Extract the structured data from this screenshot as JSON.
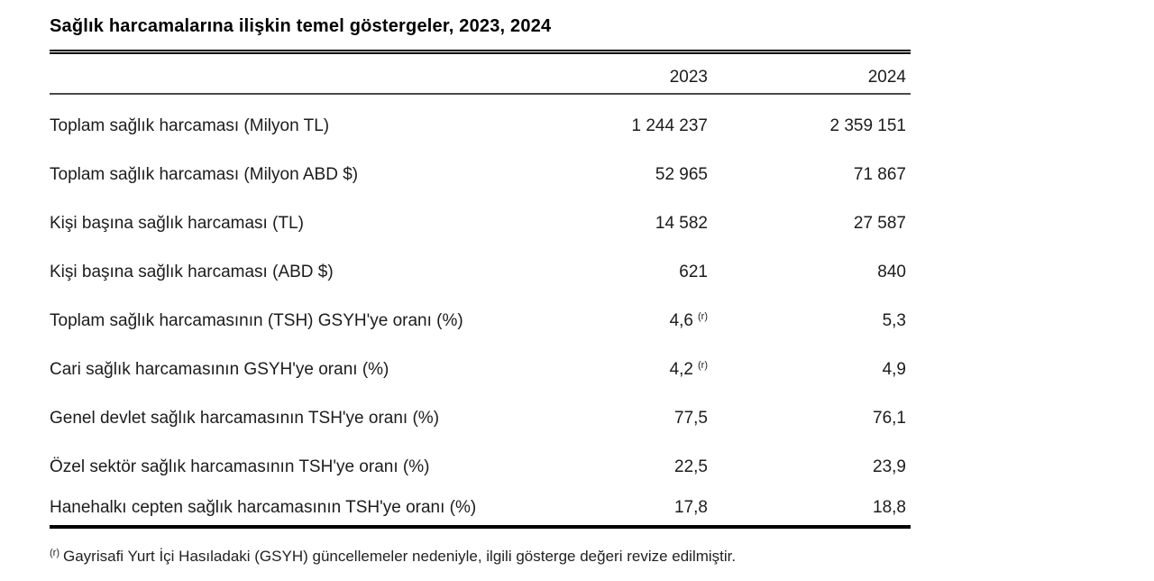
{
  "title": "Sağlık harcamalarına ilişkin temel göstergeler, 2023, 2024",
  "table": {
    "columns": [
      "2023",
      "2024"
    ],
    "rows": [
      {
        "label": "Toplam sağlık harcaması (Milyon TL)",
        "v2023": "1 244 237",
        "sup2023": "",
        "v2024": "2 359 151"
      },
      {
        "label": "Toplam sağlık harcaması (Milyon ABD $)",
        "v2023": "52 965",
        "sup2023": "",
        "v2024": "71 867"
      },
      {
        "label": "Kişi başına sağlık harcaması (TL)",
        "v2023": "14 582",
        "sup2023": "",
        "v2024": "27 587"
      },
      {
        "label": "Kişi başına sağlık harcaması (ABD $)",
        "v2023": "621",
        "sup2023": "",
        "v2024": "840"
      },
      {
        "label": "Toplam sağlık harcamasının (TSH) GSYH'ye oranı (%)",
        "v2023": "4,6",
        "sup2023": "(r)",
        "v2024": "5,3"
      },
      {
        "label": "Cari sağlık harcamasının GSYH'ye oranı (%)",
        "v2023": "4,2",
        "sup2023": "(r)",
        "v2024": "4,9"
      },
      {
        "label": "Genel devlet sağlık harcamasının TSH'ye oranı (%)",
        "v2023": "77,5",
        "sup2023": "",
        "v2024": "76,1"
      },
      {
        "label": "Özel sektör sağlık harcamasının TSH'ye oranı (%)",
        "v2023": "22,5",
        "sup2023": "",
        "v2024": "23,9"
      },
      {
        "label": "Hanehalkı cepten sağlık harcamasının TSH'ye oranı (%)",
        "v2023": "17,8",
        "sup2023": "",
        "v2024": "18,8"
      }
    ]
  },
  "footnote": {
    "marker": "(r)",
    "text": "Gayrisafi Yurt İçi Hasıladaki (GSYH) güncellemeler nedeniyle, ilgili gösterge değeri revize edilmiştir."
  },
  "chart_data": {
    "type": "table",
    "title": "Sağlık harcamalarına ilişkin temel göstergeler, 2023, 2024",
    "columns": [
      "2023",
      "2024"
    ],
    "rows": [
      {
        "indicator": "Toplam sağlık harcaması (Milyon TL)",
        "y2023": 1244237,
        "y2024": 2359151,
        "note2023": ""
      },
      {
        "indicator": "Toplam sağlık harcaması (Milyon ABD $)",
        "y2023": 52965,
        "y2024": 71867,
        "note2023": ""
      },
      {
        "indicator": "Kişi başına sağlık harcaması (TL)",
        "y2023": 14582,
        "y2024": 27587,
        "note2023": ""
      },
      {
        "indicator": "Kişi başına sağlık harcaması (ABD $)",
        "y2023": 621,
        "y2024": 840,
        "note2023": ""
      },
      {
        "indicator": "Toplam sağlık harcamasının (TSH) GSYH'ye oranı (%)",
        "y2023": 4.6,
        "y2024": 5.3,
        "note2023": "(r)"
      },
      {
        "indicator": "Cari sağlık harcamasının GSYH'ye oranı (%)",
        "y2023": 4.2,
        "y2024": 4.9,
        "note2023": "(r)"
      },
      {
        "indicator": "Genel devlet sağlık harcamasının TSH'ye oranı (%)",
        "y2023": 77.5,
        "y2024": 76.1,
        "note2023": ""
      },
      {
        "indicator": "Özel sektör sağlık harcamasının TSH'ye oranı (%)",
        "y2023": 22.5,
        "y2024": 23.9,
        "note2023": ""
      },
      {
        "indicator": "Hanehalkı cepten sağlık harcamasının TSH'ye oranı (%)",
        "y2023": 17.8,
        "y2024": 18.8,
        "note2023": ""
      }
    ],
    "footnote": "(r) Gayrisafi Yurt İçi Hasıladaki (GSYH) güncellemeler nedeniyle, ilgili gösterge değeri revize edilmiştir."
  }
}
